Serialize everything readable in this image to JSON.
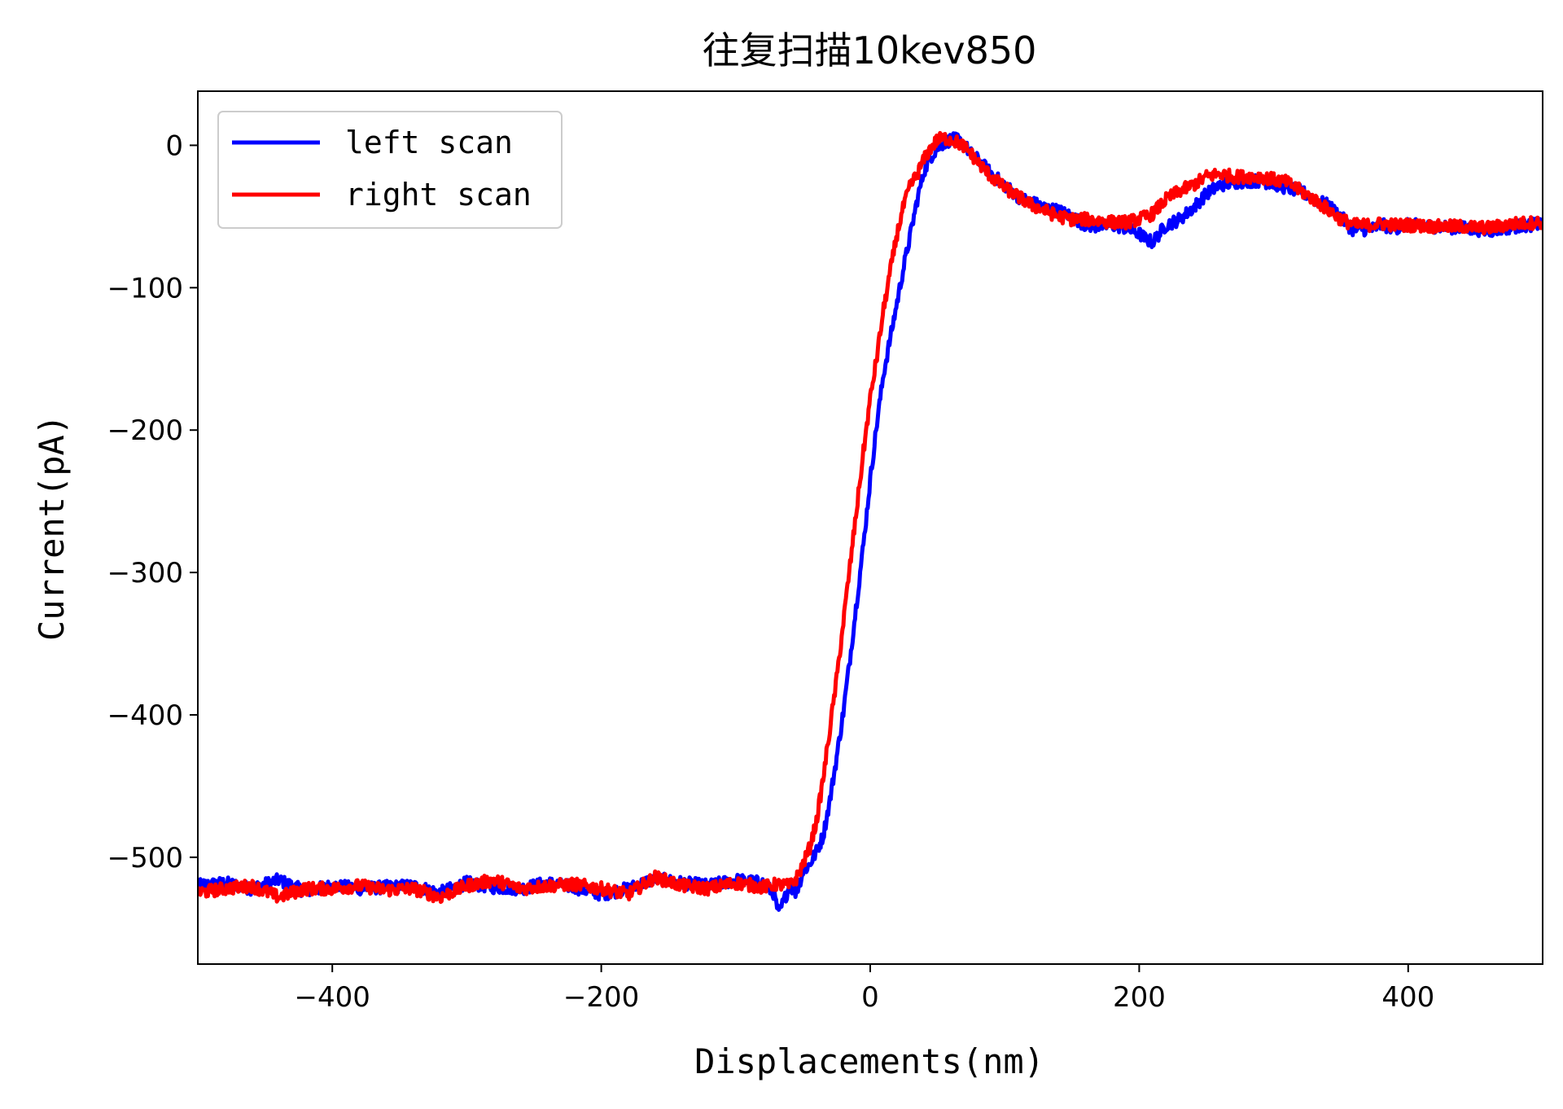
{
  "chart_data": {
    "type": "line",
    "title": "往复扫描10kev850",
    "xlabel": "Displacements(nm)",
    "ylabel": "Current(pA)",
    "xlim": [
      -500,
      500
    ],
    "ylim": [
      -575,
      38
    ],
    "xticks": [
      -400,
      -200,
      0,
      200,
      400
    ],
    "yticks": [
      0,
      -100,
      -200,
      -300,
      -400,
      -500
    ],
    "xtick_labels": [
      "−400",
      "−200",
      "0",
      "200",
      "400"
    ],
    "ytick_labels": [
      "0",
      "−100",
      "−200",
      "−300",
      "−400",
      "−500"
    ],
    "grid": false,
    "legend_position": "top-left",
    "series": [
      {
        "name": "left scan",
        "color": "#0000ff",
        "x": [
          -500,
          -480,
          -460,
          -440,
          -420,
          -400,
          -380,
          -360,
          -340,
          -320,
          -300,
          -280,
          -260,
          -240,
          -220,
          -200,
          -180,
          -160,
          -140,
          -120,
          -100,
          -80,
          -72,
          -68,
          -64,
          -60,
          -55,
          -50,
          -45,
          -40,
          -35,
          -30,
          -25,
          -20,
          -15,
          -10,
          -5,
          0,
          5,
          10,
          15,
          20,
          25,
          30,
          35,
          40,
          45,
          50,
          55,
          60,
          65,
          70,
          75,
          80,
          90,
          100,
          110,
          120,
          130,
          140,
          150,
          160,
          170,
          180,
          190,
          200,
          205,
          210,
          215,
          220,
          230,
          240,
          250,
          260,
          270,
          280,
          290,
          300,
          310,
          320,
          330,
          340,
          350,
          355,
          360,
          365,
          370,
          380,
          390,
          400,
          420,
          440,
          460,
          480,
          500
        ],
        "y": [
          -520,
          -518,
          -522,
          -516,
          -524,
          -520,
          -522,
          -521,
          -520,
          -525,
          -518,
          -521,
          -522,
          -518,
          -521,
          -526,
          -522,
          -515,
          -518,
          -520,
          -516,
          -518,
          -525,
          -540,
          -530,
          -520,
          -525,
          -510,
          -505,
          -496,
          -485,
          -460,
          -430,
          -398,
          -360,
          -320,
          -280,
          -235,
          -195,
          -160,
          -135,
          -110,
          -85,
          -62,
          -38,
          -18,
          -8,
          -2,
          2,
          4,
          4,
          0,
          -6,
          -10,
          -20,
          -28,
          -36,
          -40,
          -44,
          -46,
          -50,
          -56,
          -57,
          -56,
          -58,
          -62,
          -66,
          -68,
          -62,
          -56,
          -52,
          -44,
          -34,
          -28,
          -26,
          -25,
          -25,
          -27,
          -30,
          -32,
          -38,
          -42,
          -50,
          -56,
          -60,
          -58,
          -60,
          -56,
          -58,
          -56,
          -57,
          -58,
          -60,
          -57,
          -55
        ]
      },
      {
        "name": "right scan",
        "color": "#ff0000",
        "x": [
          -500,
          -480,
          -460,
          -440,
          -420,
          -400,
          -380,
          -360,
          -340,
          -320,
          -300,
          -280,
          -260,
          -240,
          -220,
          -200,
          -180,
          -160,
          -140,
          -120,
          -100,
          -80,
          -70,
          -60,
          -55,
          -50,
          -45,
          -40,
          -35,
          -30,
          -25,
          -20,
          -15,
          -10,
          -5,
          0,
          5,
          10,
          15,
          20,
          25,
          30,
          35,
          40,
          45,
          50,
          55,
          60,
          65,
          70,
          75,
          80,
          90,
          100,
          110,
          120,
          130,
          140,
          150,
          160,
          170,
          180,
          190,
          200,
          210,
          220,
          230,
          240,
          250,
          260,
          270,
          280,
          290,
          300,
          310,
          320,
          330,
          340,
          350,
          360,
          370,
          380,
          390,
          400,
          420,
          440,
          460,
          480,
          500
        ],
        "y": [
          -525,
          -522,
          -520,
          -528,
          -522,
          -522,
          -520,
          -523,
          -522,
          -528,
          -520,
          -516,
          -522,
          -520,
          -519,
          -522,
          -526,
          -514,
          -520,
          -522,
          -518,
          -521,
          -519,
          -520,
          -515,
          -505,
          -493,
          -475,
          -445,
          -410,
          -375,
          -335,
          -295,
          -255,
          -215,
          -178,
          -148,
          -115,
          -88,
          -62,
          -42,
          -28,
          -20,
          -10,
          -2,
          4,
          5,
          4,
          2,
          -1,
          -6,
          -12,
          -22,
          -30,
          -36,
          -42,
          -46,
          -50,
          -52,
          -52,
          -53,
          -54,
          -54,
          -52,
          -48,
          -38,
          -32,
          -28,
          -22,
          -20,
          -22,
          -22,
          -22,
          -24,
          -26,
          -32,
          -38,
          -45,
          -52,
          -56,
          -56,
          -55,
          -56,
          -56,
          -57,
          -57,
          -58,
          -55,
          -54
        ]
      }
    ]
  }
}
